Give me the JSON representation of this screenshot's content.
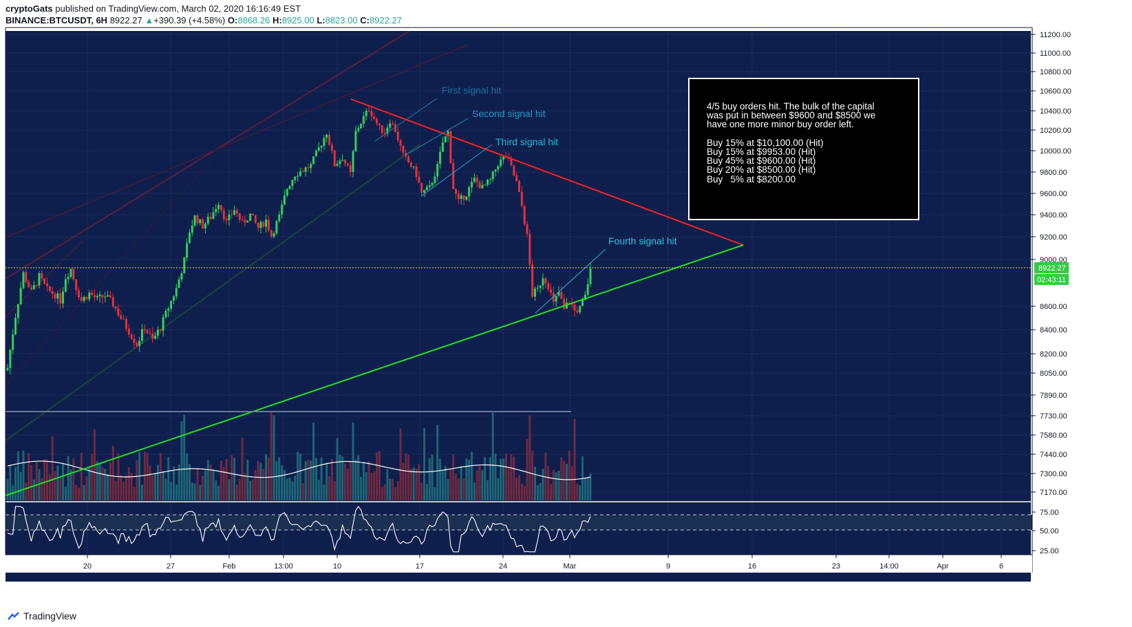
{
  "header": {
    "author": "cryptoGats",
    "published_text": "published on TradingView.com, March 02, 2020 16:16:49 EST",
    "symbol": "BINANCE:BTCUSDT, 6H",
    "last": "8922.27",
    "change_arrow": "▲",
    "change": "+390.39 (+4.58%)",
    "o_label": "O:",
    "o": "8868.26",
    "h_label": "H:",
    "h": "8925.00",
    "l_label": "L:",
    "l": "8823.00",
    "c_label": "C:",
    "c": "8922.27"
  },
  "footer": {
    "brand": "TradingView",
    "logo_icon": "tradingview-cloud-icon"
  },
  "colors": {
    "background": "#0f1f4d",
    "up": "#32d158",
    "down": "#e5303a",
    "resistance": "#ff2020",
    "support": "#22e022",
    "annotation": "#29b6d6",
    "price_tag": "#33cc44"
  },
  "chart_data": {
    "type": "candlestick",
    "symbol": "BINANCE:BTCUSDT",
    "interval": "6H",
    "price_axis_ticks": [
      "11200.00",
      "11000.00",
      "10800.00",
      "10600.00",
      "10400.00",
      "10200.00",
      "10000.00",
      "9800.00",
      "9600.00",
      "9400.00",
      "9200.00",
      "9000.00",
      "8600.00",
      "8400.00",
      "8200.00",
      "8050.00",
      "7890.00",
      "7730.00",
      "7580.00",
      "7440.00",
      "7300.00",
      "7170.00"
    ],
    "rsi_axis_ticks": [
      "75.00",
      "50.00",
      "25.00"
    ],
    "time_axis_ticks": [
      "20",
      "27",
      "Feb",
      "13:00",
      "10",
      "17",
      "24",
      "Mar",
      "9",
      "16",
      "23",
      "14:00",
      "Apr",
      "6"
    ],
    "current_price": "8922.27",
    "countdown": "02:43:11",
    "ohlc": {
      "open": 8868.26,
      "high": 8925.0,
      "low": 8823.0,
      "close": 8922.27
    },
    "close_path": [
      [
        0,
        8090
      ],
      [
        3,
        8520
      ],
      [
        6,
        8880
      ],
      [
        9,
        8720
      ],
      [
        12,
        8850
      ],
      [
        15,
        8740
      ],
      [
        18,
        8700
      ],
      [
        20,
        8650
      ],
      [
        22,
        8850
      ],
      [
        24,
        8920
      ],
      [
        26,
        8760
      ],
      [
        28,
        8650
      ],
      [
        31,
        8710
      ],
      [
        34,
        8660
      ],
      [
        37,
        8690
      ],
      [
        40,
        8620
      ],
      [
        43,
        8500
      ],
      [
        46,
        8390
      ],
      [
        49,
        8280
      ],
      [
        52,
        8420
      ],
      [
        55,
        8310
      ],
      [
        58,
        8420
      ],
      [
        61,
        8590
      ],
      [
        64,
        8750
      ],
      [
        67,
        8990
      ],
      [
        69,
        9250
      ],
      [
        71,
        9380
      ],
      [
        74,
        9300
      ],
      [
        77,
        9380
      ],
      [
        80,
        9520
      ],
      [
        83,
        9330
      ],
      [
        86,
        9450
      ],
      [
        89,
        9320
      ],
      [
        92,
        9400
      ],
      [
        95,
        9280
      ],
      [
        98,
        9350
      ],
      [
        100,
        9210
      ],
      [
        103,
        9380
      ],
      [
        106,
        9650
      ],
      [
        109,
        9780
      ],
      [
        112,
        9820
      ],
      [
        115,
        9860
      ],
      [
        118,
        10020
      ],
      [
        121,
        10180
      ],
      [
        124,
        9870
      ],
      [
        127,
        9940
      ],
      [
        130,
        9780
      ],
      [
        132,
        10180
      ],
      [
        135,
        10330
      ],
      [
        137,
        10420
      ],
      [
        139,
        10320
      ],
      [
        141,
        10220
      ],
      [
        143,
        10180
      ],
      [
        145,
        10300
      ],
      [
        147,
        10200
      ],
      [
        150,
        9950
      ],
      [
        153,
        9860
      ],
      [
        155,
        9780
      ],
      [
        157,
        9600
      ],
      [
        160,
        9650
      ],
      [
        163,
        9850
      ],
      [
        165,
        10080
      ],
      [
        167,
        10180
      ],
      [
        169,
        9650
      ],
      [
        171,
        9520
      ],
      [
        174,
        9600
      ],
      [
        177,
        9730
      ],
      [
        180,
        9650
      ],
      [
        183,
        9720
      ],
      [
        186,
        9880
      ],
      [
        189,
        9950
      ],
      [
        191,
        9840
      ],
      [
        193,
        9700
      ],
      [
        195,
        9480
      ],
      [
        197,
        9200
      ],
      [
        199,
        8700
      ],
      [
        201,
        8740
      ],
      [
        203,
        8860
      ],
      [
        205,
        8780
      ],
      [
        207,
        8620
      ],
      [
        209,
        8720
      ],
      [
        211,
        8570
      ],
      [
        213,
        8650
      ],
      [
        215,
        8560
      ],
      [
        217,
        8580
      ],
      [
        219,
        8680
      ],
      [
        221,
        8922.27
      ]
    ],
    "volume_ma_present": true,
    "rsi_levels": [
      70,
      50
    ]
  },
  "trendlines": {
    "resistance_label": "",
    "support_label": ""
  },
  "annotations": [
    {
      "text": "First signal hit"
    },
    {
      "text": "Second signal hit"
    },
    {
      "text": "Third signal hit"
    },
    {
      "text": "Fourth signal hit"
    }
  ],
  "note_box": {
    "lines": [
      "4/5 buy orders hit. The bulk of the capital",
      "was put in between $9600 and $8500 we",
      "have one more minor buy order left.",
      "",
      "Buy 15% at $10,100.00 (Hit)",
      "Buy 15% at $9953.00 (Hit)",
      "Buy 45% at $9600.00 (Hit)",
      "Buy 20% at $8500.00 (Hit)",
      "Buy   5% at $8200.00"
    ]
  }
}
